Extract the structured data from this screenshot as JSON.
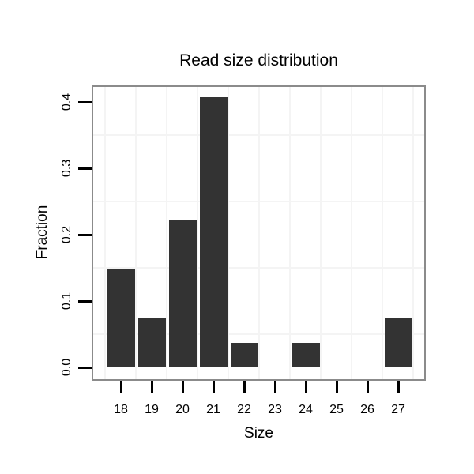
{
  "chart_data": {
    "type": "bar",
    "title": "Read size distribution",
    "xlabel": "Size",
    "ylabel": "Fraction",
    "categories": [
      "18",
      "19",
      "20",
      "21",
      "22",
      "23",
      "24",
      "25",
      "26",
      "27"
    ],
    "values": [
      0.148,
      0.074,
      0.222,
      0.407,
      0.037,
      0,
      0.037,
      0,
      0,
      0.074
    ],
    "y_ticks": [
      {
        "label": "0.0",
        "value": 0.0
      },
      {
        "label": "0.1",
        "value": 0.1
      },
      {
        "label": "0.2",
        "value": 0.2
      },
      {
        "label": "0.3",
        "value": 0.3
      },
      {
        "label": "0.4",
        "value": 0.4
      }
    ],
    "ylim": [
      0,
      0.426
    ],
    "grid": "on",
    "grid_minor_y": [
      0.05,
      0.15,
      0.25,
      0.35
    ],
    "grid_vertical": "at category boundaries",
    "legend": "none",
    "colors": {
      "bar": "#333333",
      "panel_border": "#8b8b8b",
      "gridline": "#f4f4f4",
      "background": "#ffffff",
      "text": "#000000",
      "tick": "#000000"
    }
  }
}
